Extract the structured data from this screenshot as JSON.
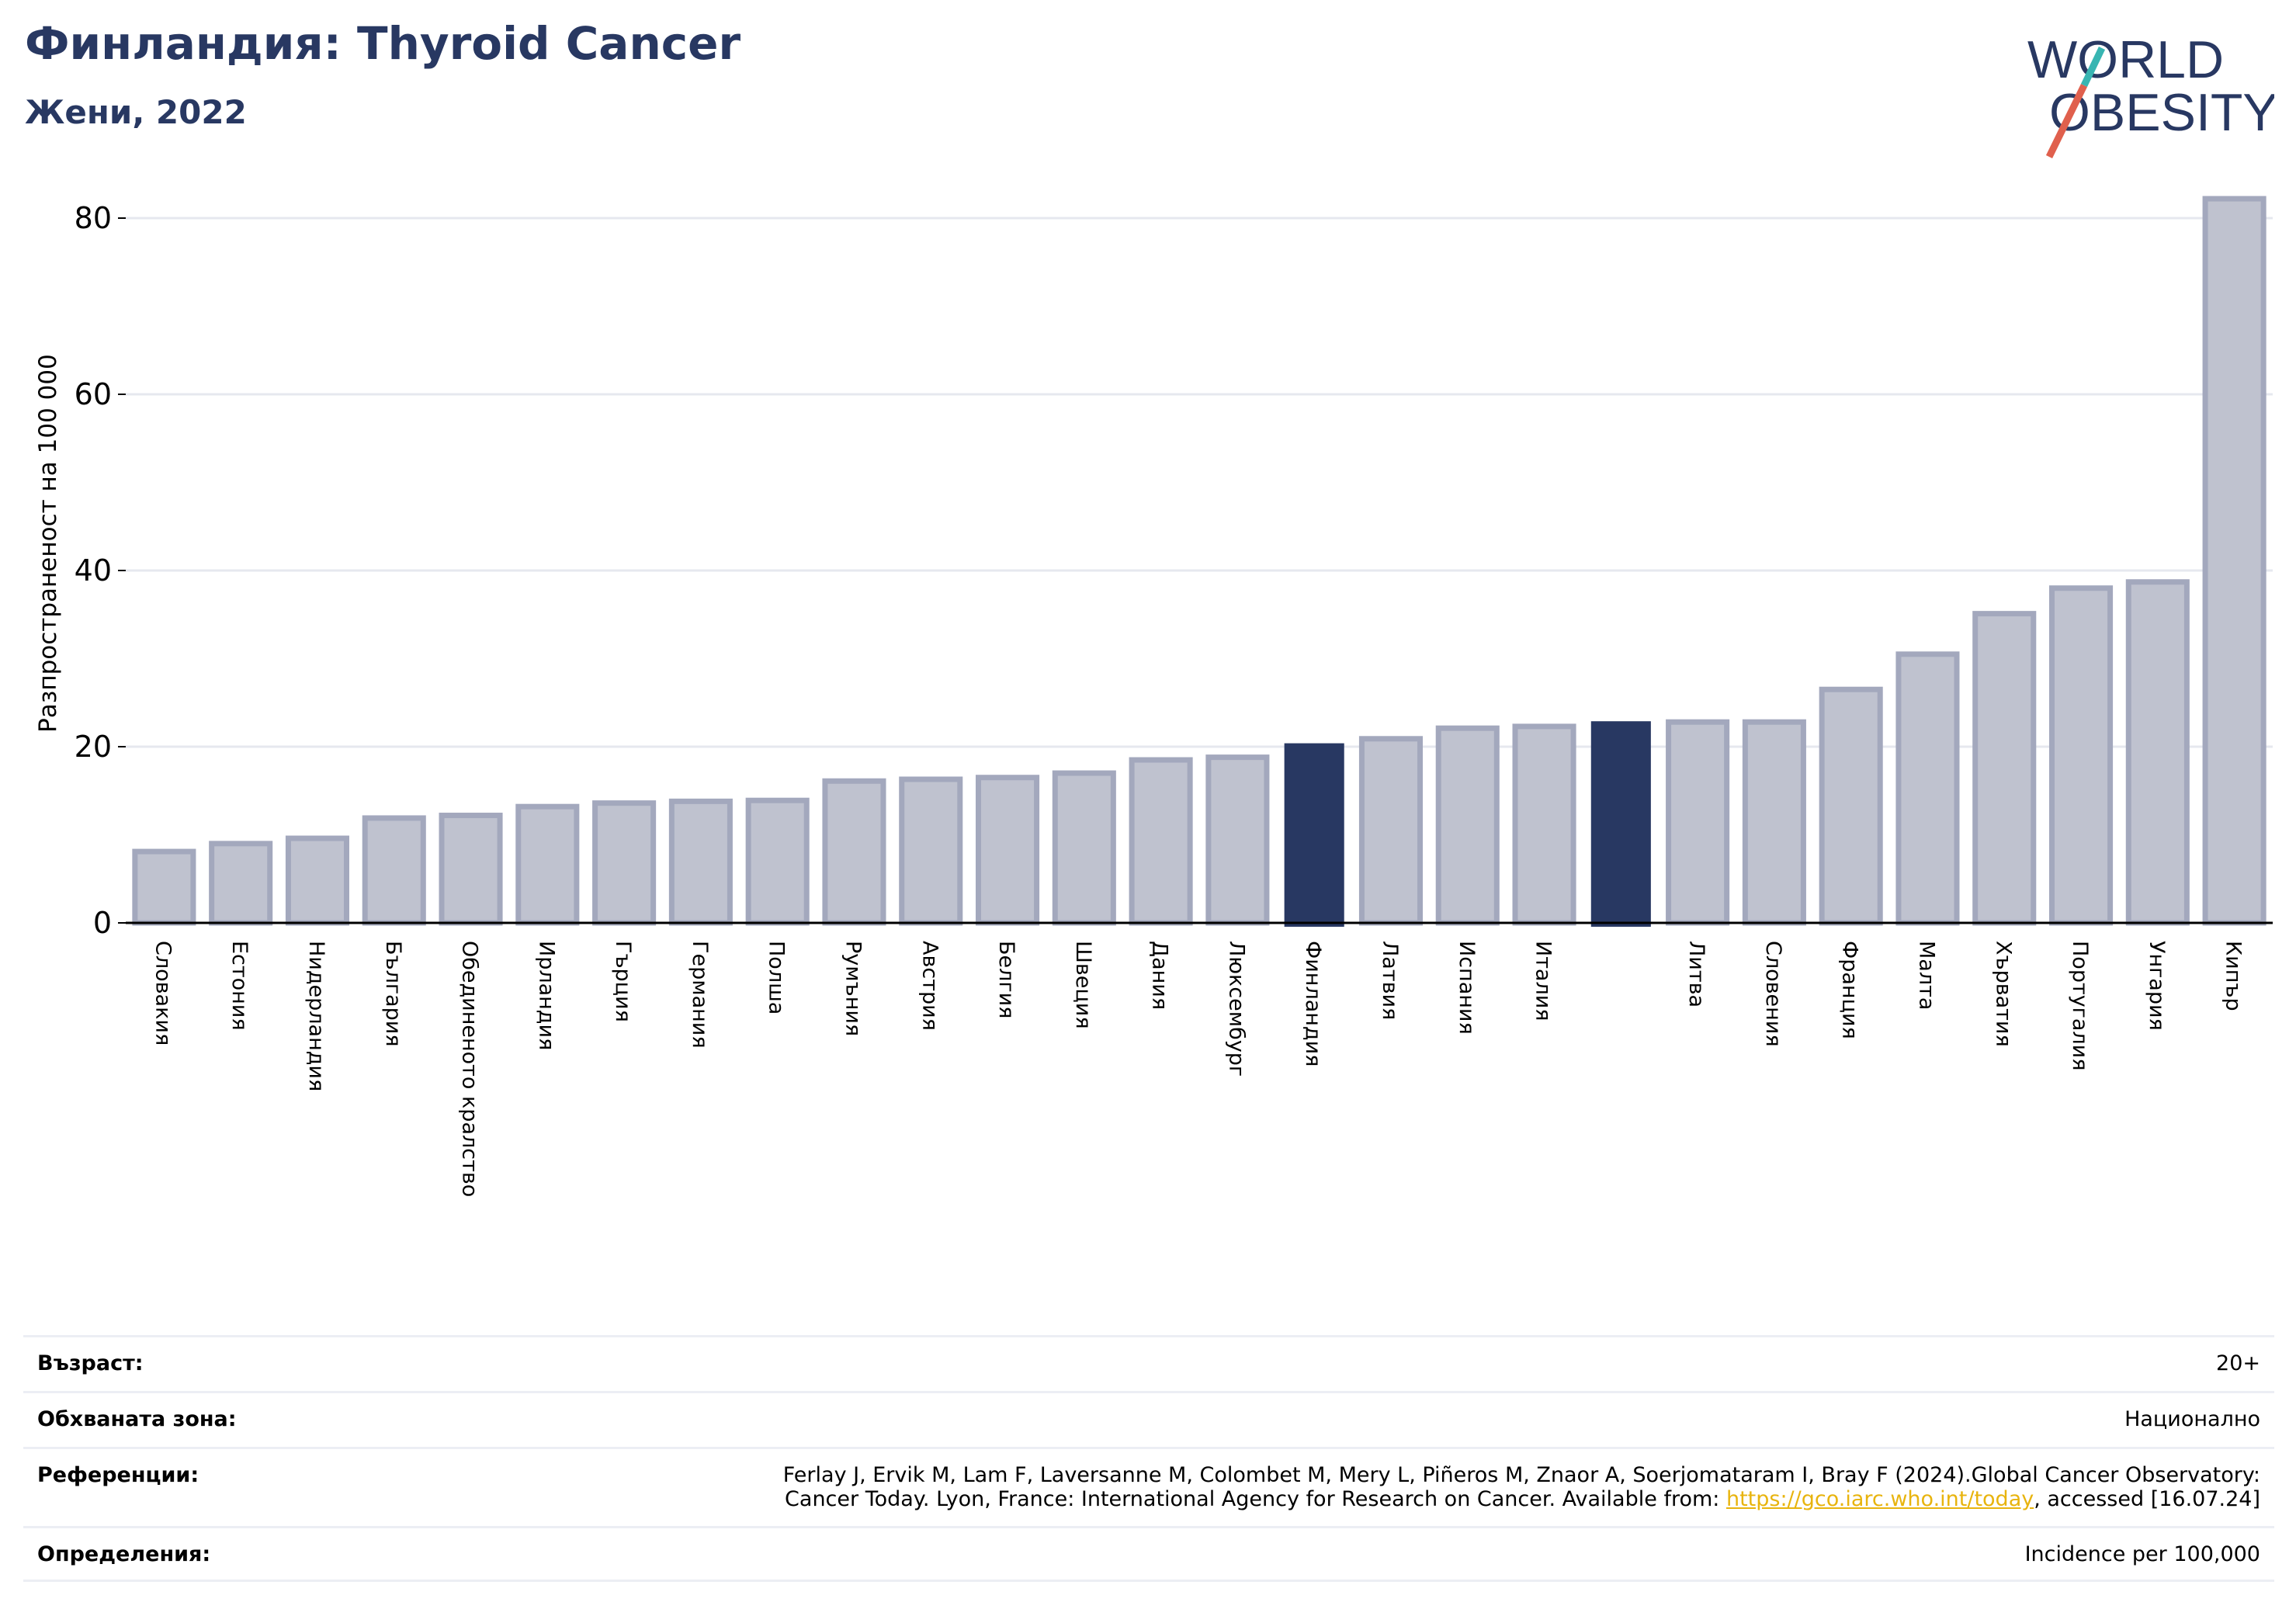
{
  "header": {
    "title": "Финландия: Thyroid Cancer",
    "subtitle": "Жени, 2022"
  },
  "logo": {
    "line1": "WORLD",
    "line2": "OBESITY",
    "colors": {
      "text": "#283862",
      "slash_red": "#e0604d",
      "slash_teal": "#38b5b2"
    }
  },
  "colors": {
    "bar_default": "#bfc2cf",
    "bar_border": "#a3a8bd",
    "bar_highlight": "#283862",
    "grid": "#e6e8ef",
    "axis": "#000000"
  },
  "chart_data": {
    "type": "bar",
    "ylabel": "Разпространеност  на 100 000",
    "ylim": [
      0,
      85
    ],
    "yticks": [
      0,
      20,
      40,
      60,
      80
    ],
    "grid": true,
    "categories": [
      "Словакия",
      "Естония",
      "Нидерландия",
      "България",
      "Обединеното кралство",
      "Ирландия",
      "Гърция",
      "Германия",
      "Полша",
      "Румъния",
      "Австрия",
      "Белгия",
      "Швеция",
      "Дания",
      "Люксембург",
      "Финландия",
      "Латвия",
      "Испания",
      "Италия",
      "",
      "Литва",
      "Словения",
      "Франция",
      "Малта",
      "Хърватия",
      "Португалия",
      "Унгария",
      "Кипър"
    ],
    "values": [
      8.1,
      9.0,
      9.6,
      11.9,
      12.2,
      13.2,
      13.6,
      13.8,
      13.9,
      16.1,
      16.3,
      16.5,
      17.0,
      18.5,
      18.8,
      20.3,
      20.9,
      22.1,
      22.3,
      22.8,
      22.8,
      22.8,
      26.5,
      30.5,
      35.1,
      38.0,
      38.7,
      82.2
    ],
    "highlight": [
      15,
      19
    ]
  },
  "info": {
    "age_label": "Възраст:",
    "age_value": "20+",
    "coverage_label": "Обхваната зона:",
    "coverage_value": "Национално",
    "references_label": "Референции:",
    "references_line1": "Ferlay J, Ervik M, Lam F, Laversanne M, Colombet M, Mery L, Piñeros M, Znaor A, Soerjomataram I, Bray F (2024).Global Cancer Observatory:",
    "references_line2_pre": "Cancer Today. Lyon, France: International Agency for Research on Cancer. Available from: ",
    "references_link": "https://gco.iarc.who.int/today",
    "references_line2_post": ", accessed [16.07.24]",
    "definitions_label": "Определения:",
    "definitions_value": "Incidence per 100,000"
  }
}
